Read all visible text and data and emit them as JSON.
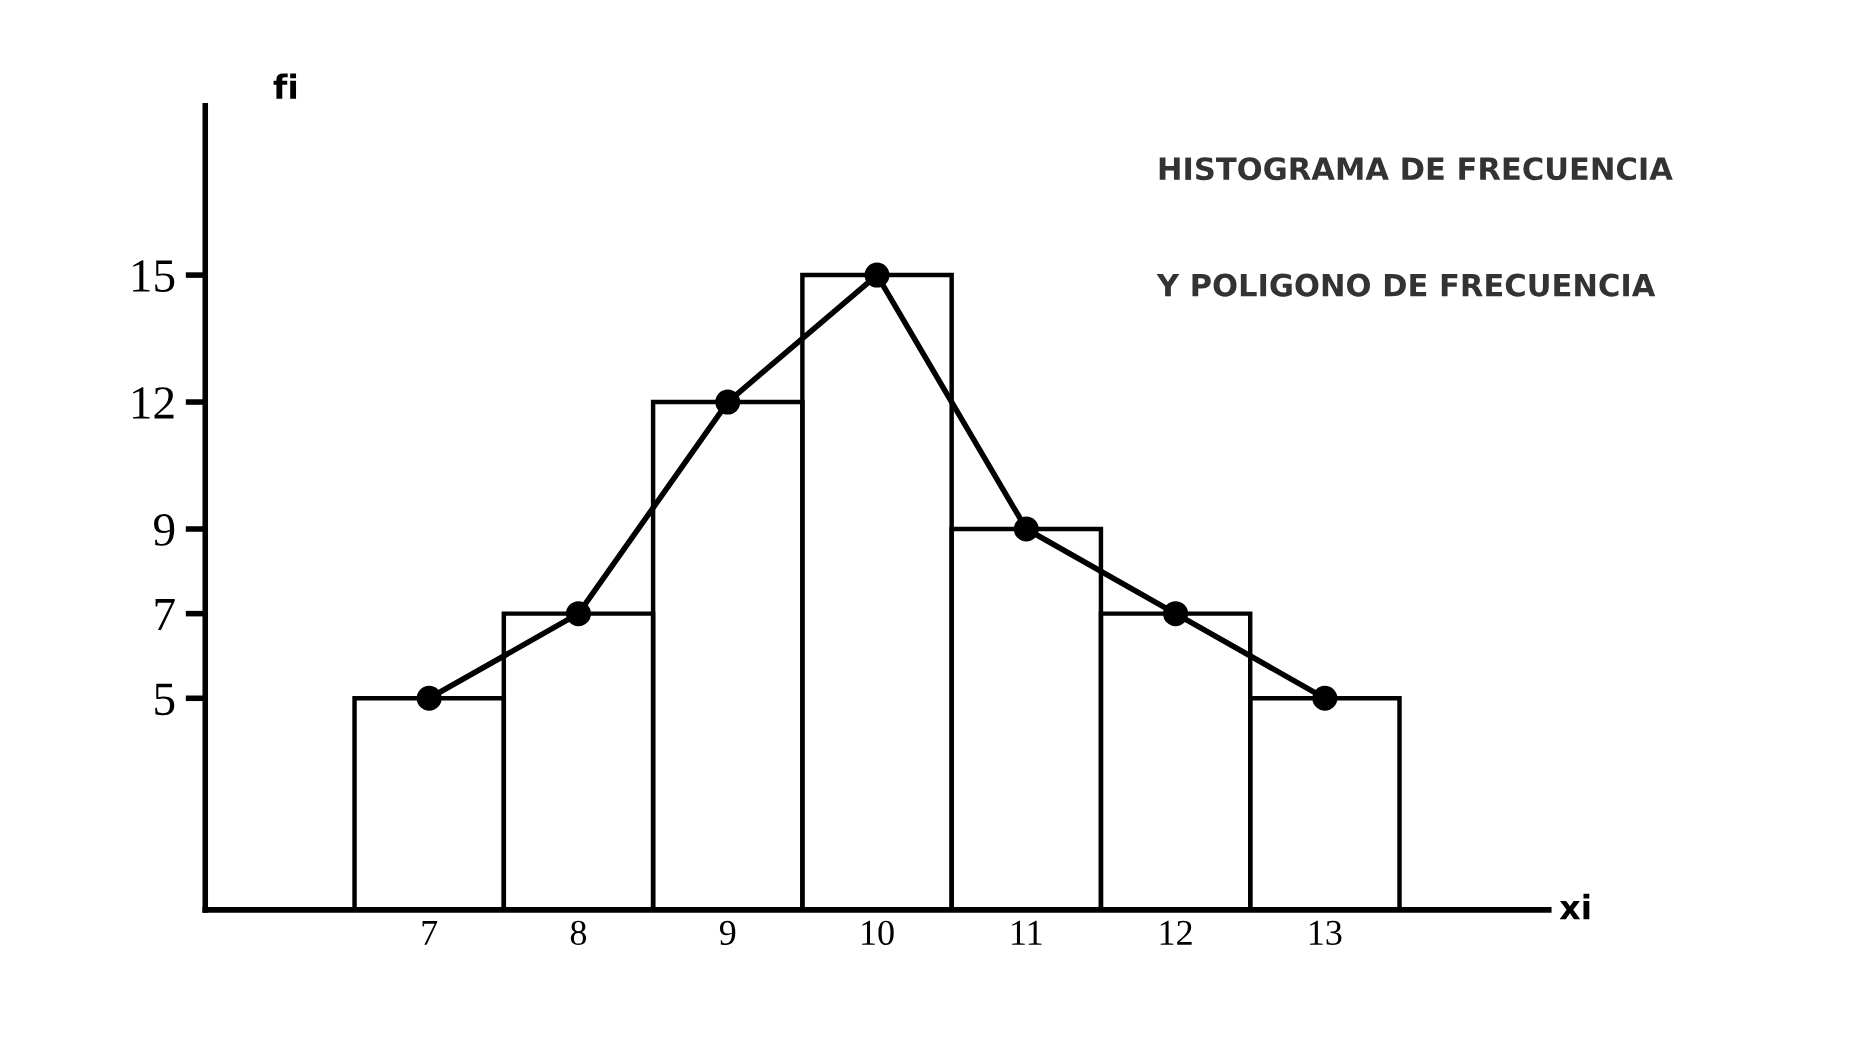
{
  "chart_data": {
    "type": "histogram",
    "title": "HISTOGRAMA DE FRECUENCIA",
    "subtitle": "Y POLIGONO DE FRECUENCIA",
    "xlabel": "xi",
    "ylabel": "fi",
    "bins": [
      6.5,
      7.5,
      8.5,
      9.5,
      10.5,
      11.5,
      12.5,
      13.5
    ],
    "values": [
      5,
      7,
      12,
      15,
      9,
      7,
      5
    ],
    "series": [
      {
        "type": "line",
        "color": "#000000",
        "x": [
          7,
          8,
          9,
          10,
          11,
          12,
          13
        ],
        "values": [
          5,
          7,
          12,
          15,
          9,
          7,
          5
        ]
      }
    ],
    "color": "#000000",
    "marker": "circle",
    "line_style": "solid",
    "grid": false,
    "legend": false,
    "xlim": [
      5.5,
      14.5
    ],
    "ylim": [
      0,
      19
    ],
    "xticks": [
      7,
      8,
      9,
      10,
      11,
      12,
      13
    ],
    "yticks": [
      5,
      7,
      9,
      12,
      15
    ]
  }
}
